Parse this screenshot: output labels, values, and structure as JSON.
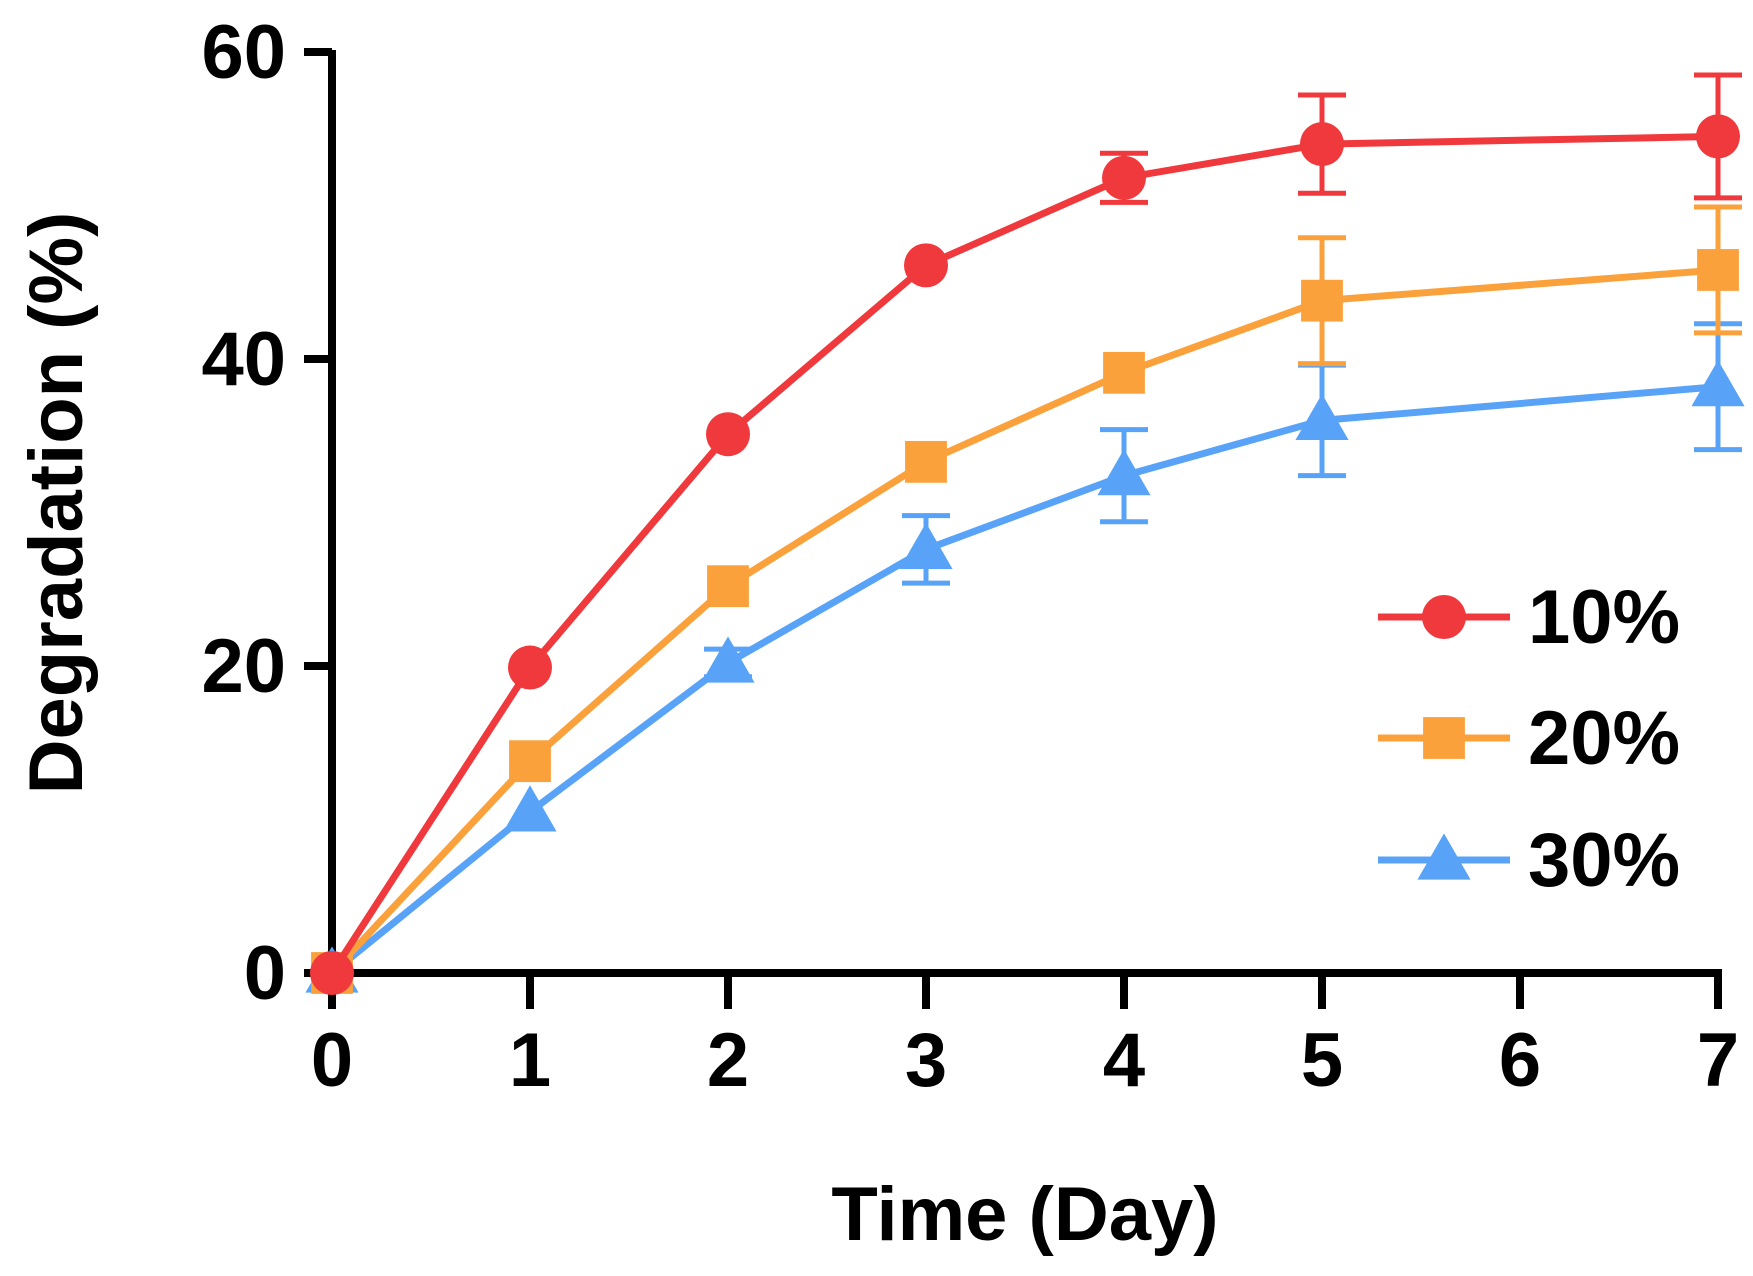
{
  "chart_data": {
    "type": "line",
    "title": "",
    "xlabel": "Time (Day)",
    "ylabel": "Degradation (%)",
    "xlim": [
      0,
      7
    ],
    "ylim": [
      0,
      60
    ],
    "x_ticks": [
      0,
      1,
      2,
      3,
      4,
      5,
      6,
      7
    ],
    "y_ticks": [
      0,
      20,
      40,
      60
    ],
    "grid": false,
    "legend_position": "right-middle",
    "series": [
      {
        "name": "10%",
        "color": "#f0393c",
        "marker": "circle",
        "x": [
          0,
          1,
          2,
          3,
          4,
          5,
          7
        ],
        "values": [
          0,
          19.9,
          35.1,
          46.1,
          51.8,
          54.0,
          54.5
        ],
        "errors": [
          0,
          0,
          0,
          0,
          1.6,
          3.2,
          4.0
        ]
      },
      {
        "name": "20%",
        "color": "#fba13c",
        "marker": "square",
        "x": [
          0,
          1,
          2,
          3,
          4,
          5,
          7
        ],
        "values": [
          0,
          13.8,
          25.2,
          33.3,
          39.1,
          43.8,
          45.8
        ],
        "errors": [
          0,
          0,
          0,
          0,
          0,
          4.1,
          4.1
        ]
      },
      {
        "name": "30%",
        "color": "#58a3f7",
        "marker": "triangle",
        "x": [
          0,
          1,
          2,
          3,
          4,
          5,
          7
        ],
        "values": [
          0,
          10.5,
          20.2,
          27.6,
          32.4,
          36.0,
          38.2
        ],
        "errors": [
          0,
          0,
          0.9,
          2.2,
          3.0,
          3.6,
          4.1
        ]
      }
    ]
  }
}
